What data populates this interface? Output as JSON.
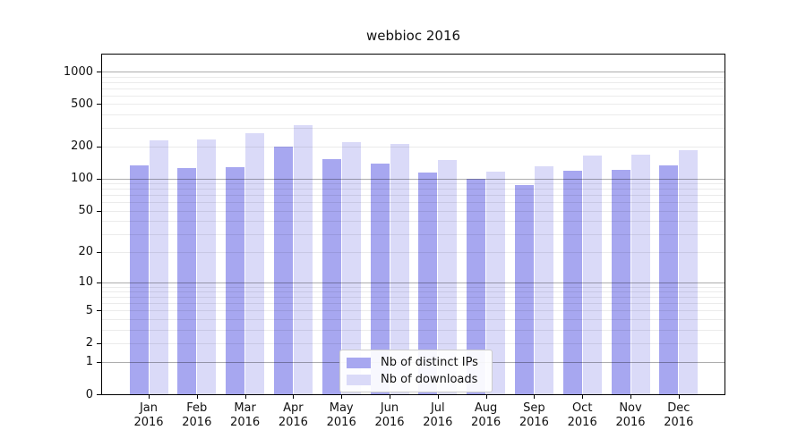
{
  "figure": {
    "background": "#ffffff",
    "axis_color": "#000000",
    "major_grid_color": "rgba(0,0,0,0.32)",
    "minor_grid_color": "rgba(0,0,0,0.08)"
  },
  "chart_data": {
    "type": "bar",
    "title": "webbioc 2016",
    "categories": [
      "Jan",
      "Feb",
      "Mar",
      "Apr",
      "May",
      "Jun",
      "Jul",
      "Aug",
      "Sep",
      "Oct",
      "Nov",
      "Dec"
    ],
    "year_label": "2016",
    "series": [
      {
        "name": "Nb of distinct IPs",
        "color": "#a7a7f0",
        "values": [
          134,
          125,
          128,
          200,
          152,
          139,
          114,
          100,
          87,
          118,
          121,
          134
        ]
      },
      {
        "name": "Nb of downloads",
        "color": "#dadaf8",
        "values": [
          227,
          234,
          269,
          318,
          220,
          213,
          150,
          116,
          130,
          165,
          167,
          185
        ]
      }
    ],
    "yscale": "log10(v+1)",
    "yticks": [
      0,
      1,
      2,
      5,
      10,
      20,
      50,
      100,
      200,
      500,
      1000
    ],
    "ylim": [
      0,
      1400
    ],
    "grid": true,
    "legend_position": "lower center"
  }
}
